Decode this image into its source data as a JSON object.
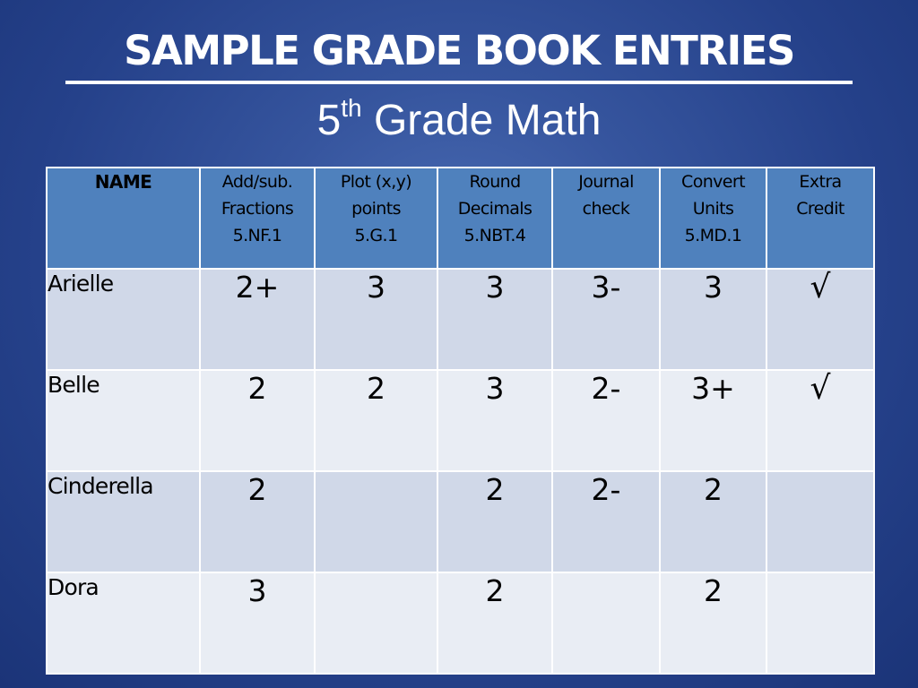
{
  "slide": {
    "title": "SAMPLE GRADE BOOK ENTRIES",
    "subtitle_main": "5",
    "subtitle_sup": "th",
    "subtitle_rest": " Grade Math"
  },
  "table": {
    "headers": [
      {
        "lines": [
          "NAME"
        ]
      },
      {
        "lines": [
          "Add/sub.",
          "Fractions",
          "5.NF.1"
        ]
      },
      {
        "lines": [
          "Plot (x,y)",
          "points",
          "5.G.1"
        ]
      },
      {
        "lines": [
          "Round",
          "Decimals",
          "5.NBT.4"
        ]
      },
      {
        "lines": [
          "Journal",
          "check"
        ]
      },
      {
        "lines": [
          "Convert",
          "Units",
          "5.MD.1"
        ]
      },
      {
        "lines": [
          "Extra",
          "Credit"
        ]
      }
    ],
    "rows": [
      {
        "name": "Arielle",
        "cells": [
          "2+",
          "3",
          "3",
          "3-",
          "3",
          "√"
        ]
      },
      {
        "name": "Belle",
        "cells": [
          "2",
          "2",
          "3",
          "2-",
          "3+",
          "√"
        ]
      },
      {
        "name": "Cinderella",
        "cells": [
          "2",
          "",
          "2",
          "2-",
          "2",
          ""
        ]
      },
      {
        "name": "Dora",
        "cells": [
          "3",
          "",
          "2",
          "",
          "2",
          ""
        ]
      }
    ]
  }
}
